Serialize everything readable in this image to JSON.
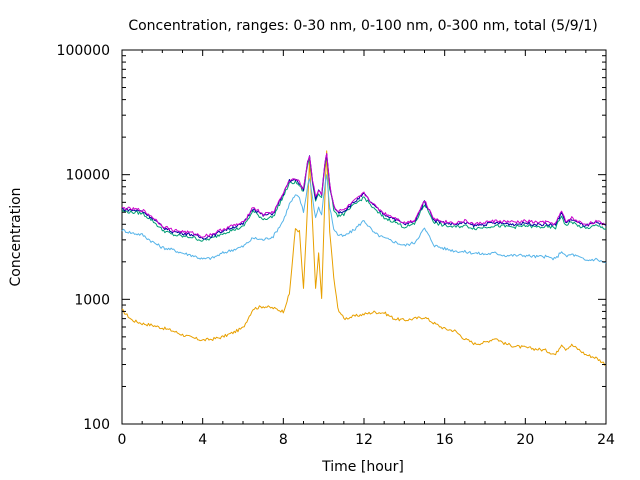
{
  "chart_data": {
    "type": "line",
    "title": "Concentration, ranges: 0-30 nm, 0-100 nm, 0-300 nm, total (5/9/1)",
    "xlabel": "Time [hour]",
    "ylabel": "Concentration",
    "xlim": [
      0,
      24
    ],
    "ylim": [
      100,
      100000
    ],
    "yscale": "log",
    "grid": false,
    "legend": "none",
    "xticks": [
      0,
      4,
      8,
      12,
      16,
      20,
      24
    ],
    "xtick_labels": [
      "0",
      "4",
      "8",
      "12",
      "16",
      "20",
      "24"
    ],
    "yticks": [
      100,
      1000,
      10000,
      100000
    ],
    "ytick_labels": [
      "100",
      "1000",
      "10000",
      "100000"
    ],
    "series": [
      {
        "color": "#e8a000",
        "points": [
          [
            0,
            820
          ],
          [
            0.5,
            680
          ],
          [
            1,
            640
          ],
          [
            1.5,
            620
          ],
          [
            2,
            590
          ],
          [
            2.5,
            560
          ],
          [
            3,
            520
          ],
          [
            3.5,
            490
          ],
          [
            4,
            470
          ],
          [
            4.5,
            480
          ],
          [
            5,
            500
          ],
          [
            5.5,
            540
          ],
          [
            6,
            590
          ],
          [
            6.5,
            840
          ],
          [
            7,
            880
          ],
          [
            7.5,
            850
          ],
          [
            8,
            800
          ],
          [
            8.3,
            1100
          ],
          [
            8.6,
            3700
          ],
          [
            8.8,
            3500
          ],
          [
            9.0,
            1200
          ],
          [
            9.2,
            5500
          ],
          [
            9.3,
            13000
          ],
          [
            9.45,
            4000
          ],
          [
            9.6,
            1200
          ],
          [
            9.75,
            2300
          ],
          [
            9.9,
            1000
          ],
          [
            10.05,
            6000
          ],
          [
            10.15,
            15500
          ],
          [
            10.3,
            3500
          ],
          [
            10.5,
            1500
          ],
          [
            10.7,
            850
          ],
          [
            11,
            700
          ],
          [
            11.5,
            730
          ],
          [
            12,
            760
          ],
          [
            12.5,
            790
          ],
          [
            13,
            780
          ],
          [
            13.5,
            700
          ],
          [
            14,
            680
          ],
          [
            14.5,
            700
          ],
          [
            15,
            720
          ],
          [
            15.5,
            640
          ],
          [
            16,
            580
          ],
          [
            16.5,
            560
          ],
          [
            17,
            480
          ],
          [
            17.5,
            440
          ],
          [
            18,
            450
          ],
          [
            18.5,
            490
          ],
          [
            19,
            440
          ],
          [
            19.5,
            420
          ],
          [
            20,
            410
          ],
          [
            20.5,
            400
          ],
          [
            21,
            390
          ],
          [
            21.5,
            360
          ],
          [
            21.8,
            440
          ],
          [
            22,
            400
          ],
          [
            22.3,
            430
          ],
          [
            22.6,
            400
          ],
          [
            23,
            360
          ],
          [
            23.5,
            340
          ],
          [
            24,
            300
          ]
        ]
      },
      {
        "color": "#56b4e9",
        "points": [
          [
            0,
            3600
          ],
          [
            0.5,
            3400
          ],
          [
            1,
            3300
          ],
          [
            1.5,
            2900
          ],
          [
            2,
            2600
          ],
          [
            2.5,
            2500
          ],
          [
            3,
            2350
          ],
          [
            3.5,
            2250
          ],
          [
            4,
            2100
          ],
          [
            4.5,
            2150
          ],
          [
            5,
            2350
          ],
          [
            5.5,
            2500
          ],
          [
            6,
            2650
          ],
          [
            6.5,
            3100
          ],
          [
            7,
            3000
          ],
          [
            7.5,
            3200
          ],
          [
            8,
            4300
          ],
          [
            8.3,
            5800
          ],
          [
            8.6,
            6800
          ],
          [
            8.8,
            6500
          ],
          [
            9.0,
            5000
          ],
          [
            9.2,
            8000
          ],
          [
            9.3,
            9500
          ],
          [
            9.45,
            6500
          ],
          [
            9.6,
            4500
          ],
          [
            9.75,
            5500
          ],
          [
            9.9,
            4700
          ],
          [
            10.05,
            8000
          ],
          [
            10.15,
            10000
          ],
          [
            10.3,
            5500
          ],
          [
            10.5,
            3700
          ],
          [
            10.7,
            3300
          ],
          [
            11,
            3200
          ],
          [
            11.5,
            3600
          ],
          [
            12,
            4300
          ],
          [
            12.5,
            3400
          ],
          [
            13,
            3100
          ],
          [
            13.5,
            2900
          ],
          [
            14,
            2700
          ],
          [
            14.5,
            2850
          ],
          [
            15,
            3700
          ],
          [
            15.5,
            2700
          ],
          [
            16,
            2550
          ],
          [
            16.5,
            2450
          ],
          [
            17,
            2400
          ],
          [
            17.5,
            2350
          ],
          [
            18,
            2300
          ],
          [
            18.5,
            2350
          ],
          [
            19,
            2250
          ],
          [
            19.5,
            2250
          ],
          [
            20,
            2250
          ],
          [
            20.5,
            2200
          ],
          [
            21,
            2200
          ],
          [
            21.5,
            2100
          ],
          [
            21.8,
            2450
          ],
          [
            22,
            2200
          ],
          [
            22.3,
            2300
          ],
          [
            22.6,
            2200
          ],
          [
            23,
            2050
          ],
          [
            23.5,
            2100
          ],
          [
            24,
            1950
          ]
        ]
      },
      {
        "color": "#009e73",
        "points": [
          [
            0,
            5100
          ],
          [
            0.5,
            5000
          ],
          [
            1,
            4900
          ],
          [
            1.5,
            4300
          ],
          [
            2,
            3600
          ],
          [
            2.5,
            3300
          ],
          [
            3,
            3200
          ],
          [
            3.5,
            3150
          ],
          [
            4,
            2950
          ],
          [
            4.5,
            3100
          ],
          [
            5,
            3400
          ],
          [
            5.5,
            3600
          ],
          [
            6,
            3800
          ],
          [
            6.5,
            5100
          ],
          [
            7,
            4400
          ],
          [
            7.5,
            4600
          ],
          [
            8,
            6700
          ],
          [
            8.3,
            8500
          ],
          [
            8.6,
            8700
          ],
          [
            8.8,
            8200
          ],
          [
            9.0,
            7200
          ],
          [
            9.2,
            12000
          ],
          [
            9.3,
            13500
          ],
          [
            9.45,
            8500
          ],
          [
            9.6,
            6200
          ],
          [
            9.75,
            7200
          ],
          [
            9.9,
            6500
          ],
          [
            10.05,
            11500
          ],
          [
            10.15,
            14000
          ],
          [
            10.3,
            7800
          ],
          [
            10.5,
            5300
          ],
          [
            10.7,
            4700
          ],
          [
            11,
            4800
          ],
          [
            11.5,
            5700
          ],
          [
            12,
            6600
          ],
          [
            12.5,
            5300
          ],
          [
            13,
            4500
          ],
          [
            13.5,
            4200
          ],
          [
            14,
            3800
          ],
          [
            14.5,
            4000
          ],
          [
            15,
            5800
          ],
          [
            15.5,
            4100
          ],
          [
            16,
            3900
          ],
          [
            16.5,
            3800
          ],
          [
            17,
            3900
          ],
          [
            17.5,
            3700
          ],
          [
            18,
            3800
          ],
          [
            18.5,
            3900
          ],
          [
            19,
            3850
          ],
          [
            19.5,
            3800
          ],
          [
            20,
            3900
          ],
          [
            20.5,
            3800
          ],
          [
            21,
            3800
          ],
          [
            21.5,
            3750
          ],
          [
            21.8,
            4700
          ],
          [
            22,
            3900
          ],
          [
            22.3,
            4200
          ],
          [
            22.6,
            3900
          ],
          [
            23,
            3700
          ],
          [
            23.5,
            3900
          ],
          [
            24,
            3700
          ]
        ]
      },
      {
        "color": "#0000a0",
        "points": [
          [
            0,
            5300
          ],
          [
            0.5,
            5200
          ],
          [
            1,
            5100
          ],
          [
            1.5,
            4500
          ],
          [
            2,
            3800
          ],
          [
            2.5,
            3500
          ],
          [
            3,
            3400
          ],
          [
            3.5,
            3300
          ],
          [
            4,
            3100
          ],
          [
            4.5,
            3250
          ],
          [
            5,
            3550
          ],
          [
            5.5,
            3800
          ],
          [
            6,
            4000
          ],
          [
            6.5,
            5400
          ],
          [
            7,
            4700
          ],
          [
            7.5,
            4900
          ],
          [
            8,
            7000
          ],
          [
            8.3,
            8900
          ],
          [
            8.6,
            9100
          ],
          [
            8.8,
            8600
          ],
          [
            9.0,
            7500
          ],
          [
            9.2,
            12500
          ],
          [
            9.3,
            14200
          ],
          [
            9.45,
            8900
          ],
          [
            9.6,
            6500
          ],
          [
            9.75,
            7500
          ],
          [
            9.9,
            6800
          ],
          [
            10.05,
            12000
          ],
          [
            10.15,
            14800
          ],
          [
            10.3,
            8200
          ],
          [
            10.5,
            5600
          ],
          [
            10.7,
            5000
          ],
          [
            11,
            5100
          ],
          [
            11.5,
            6000
          ],
          [
            12,
            7000
          ],
          [
            12.5,
            5600
          ],
          [
            13,
            4800
          ],
          [
            13.5,
            4450
          ],
          [
            14,
            4000
          ],
          [
            14.5,
            4200
          ],
          [
            15,
            6100
          ],
          [
            15.5,
            4300
          ],
          [
            16,
            4100
          ],
          [
            16.5,
            4000
          ],
          [
            17,
            4100
          ],
          [
            17.5,
            3900
          ],
          [
            18,
            4000
          ],
          [
            18.5,
            4100
          ],
          [
            19,
            4050
          ],
          [
            19.5,
            4000
          ],
          [
            20,
            4100
          ],
          [
            20.5,
            4000
          ],
          [
            21,
            4000
          ],
          [
            21.5,
            3950
          ],
          [
            21.8,
            5000
          ],
          [
            22,
            4100
          ],
          [
            22.3,
            4400
          ],
          [
            22.6,
            4100
          ],
          [
            23,
            3900
          ],
          [
            23.5,
            4100
          ],
          [
            24,
            3900
          ]
        ]
      },
      {
        "color": "#cc00cc",
        "points": [
          [
            0,
            5400
          ],
          [
            0.5,
            5300
          ],
          [
            1,
            5200
          ],
          [
            1.5,
            4600
          ],
          [
            2,
            3900
          ],
          [
            2.5,
            3600
          ],
          [
            3,
            3500
          ],
          [
            3.5,
            3400
          ],
          [
            4,
            3200
          ],
          [
            4.5,
            3350
          ],
          [
            5,
            3650
          ],
          [
            5.5,
            3900
          ],
          [
            6,
            4100
          ],
          [
            6.5,
            5500
          ],
          [
            7,
            4800
          ],
          [
            7.5,
            5000
          ],
          [
            8,
            7100
          ],
          [
            8.3,
            9000
          ],
          [
            8.6,
            9200
          ],
          [
            8.8,
            8700
          ],
          [
            9.0,
            7600
          ],
          [
            9.2,
            12600
          ],
          [
            9.3,
            14300
          ],
          [
            9.45,
            9000
          ],
          [
            9.6,
            6600
          ],
          [
            9.75,
            7600
          ],
          [
            9.9,
            6900
          ],
          [
            10.05,
            12100
          ],
          [
            10.15,
            14900
          ],
          [
            10.3,
            8300
          ],
          [
            10.5,
            5700
          ],
          [
            10.7,
            5100
          ],
          [
            11,
            5200
          ],
          [
            11.5,
            6100
          ],
          [
            12,
            7100
          ],
          [
            12.5,
            5700
          ],
          [
            13,
            4900
          ],
          [
            13.5,
            4550
          ],
          [
            14,
            4100
          ],
          [
            14.5,
            4300
          ],
          [
            15,
            6200
          ],
          [
            15.5,
            4400
          ],
          [
            16,
            4200
          ],
          [
            16.5,
            4100
          ],
          [
            17,
            4250
          ],
          [
            17.5,
            4000
          ],
          [
            18,
            4150
          ],
          [
            18.5,
            4250
          ],
          [
            19,
            4200
          ],
          [
            19.5,
            4150
          ],
          [
            20,
            4250
          ],
          [
            20.5,
            4150
          ],
          [
            21,
            4150
          ],
          [
            21.5,
            4050
          ],
          [
            21.8,
            5100
          ],
          [
            22,
            4200
          ],
          [
            22.3,
            4500
          ],
          [
            22.6,
            4200
          ],
          [
            23,
            4000
          ],
          [
            23.5,
            4200
          ],
          [
            24,
            4000
          ]
        ]
      }
    ]
  }
}
